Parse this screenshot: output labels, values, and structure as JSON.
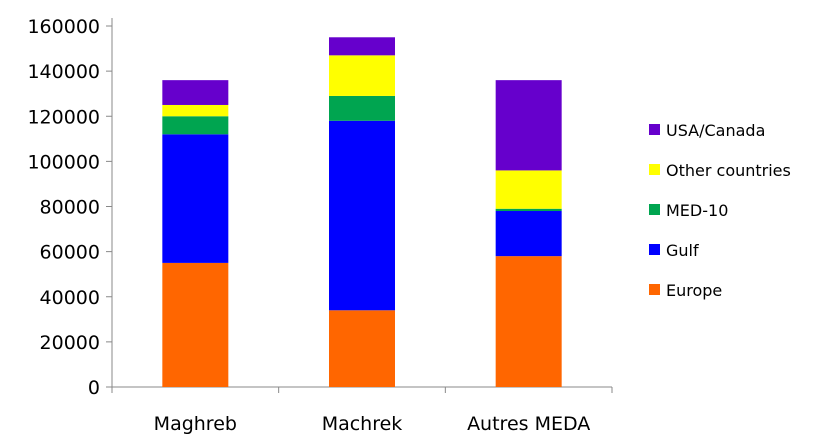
{
  "chart_data": {
    "type": "bar",
    "stacked": true,
    "categories": [
      "Maghreb",
      "Machrek",
      "Autres MEDA"
    ],
    "series": [
      {
        "name": "Europe",
        "color": "#FF6600",
        "values": [
          55000,
          34000,
          58000
        ]
      },
      {
        "name": "Gulf",
        "color": "#0000FF",
        "values": [
          57000,
          84000,
          20000
        ]
      },
      {
        "name": "MED-10",
        "color": "#00A550",
        "values": [
          8000,
          11000,
          1000
        ]
      },
      {
        "name": "Other countries",
        "color": "#FFFF00",
        "values": [
          5000,
          18000,
          17000
        ]
      },
      {
        "name": "USA/Canada",
        "color": "#6600CC",
        "values": [
          11000,
          8000,
          40000
        ]
      }
    ],
    "yticks": [
      "0",
      "20000",
      "40000",
      "60000",
      "80000",
      "100000",
      "120000",
      "140000",
      "160000"
    ],
    "ylim": [
      0,
      160000
    ],
    "grid": false,
    "legend": {
      "position": "right",
      "order": [
        "USA/Canada",
        "Other countries",
        "MED-10",
        "Gulf",
        "Europe"
      ]
    },
    "title": "",
    "xlabel": "",
    "ylabel": ""
  }
}
